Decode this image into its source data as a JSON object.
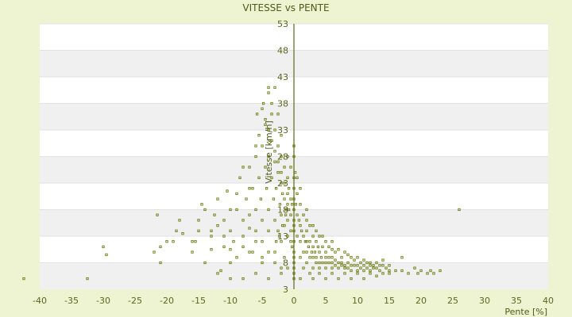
{
  "chart_data": {
    "type": "scatter",
    "title": "VITESSE vs PENTE",
    "xlabel": "Pente [%]",
    "ylabel": "Vitesse [km/h]",
    "xlim": [
      -40,
      40
    ],
    "ylim": [
      3,
      53
    ],
    "x_ticks": [
      "-40",
      "-35",
      "-30",
      "-25",
      "-20",
      "-15",
      "-10",
      "-5",
      "0",
      "5",
      "10",
      "15",
      "20",
      "25",
      "30",
      "35",
      "40"
    ],
    "y_ticks": [
      "53",
      "48",
      "43",
      "38",
      "33",
      "28",
      "23",
      "18",
      "13",
      "8",
      "3"
    ],
    "grid": "horizontal bands",
    "colors": {
      "background": "#eef3d1",
      "band_light": "#ffffff",
      "band_dark": "#f0f0f0",
      "axis": "#5a6b10",
      "marker": "#6f7d12"
    },
    "series": [
      {
        "points": [
          [
            -42.5,
            5
          ],
          [
            -32.5,
            5
          ],
          [
            -30,
            11
          ],
          [
            -29.5,
            9.5
          ],
          [
            -21.5,
            17
          ],
          [
            -21,
            11
          ],
          [
            -21,
            8
          ],
          [
            -19,
            12
          ],
          [
            -18.5,
            14
          ],
          [
            -17.5,
            13.5
          ],
          [
            -16,
            10
          ],
          [
            -15.5,
            12
          ],
          [
            -15,
            16
          ],
          [
            -14.5,
            19
          ],
          [
            -14,
            8
          ],
          [
            -13,
            10.5
          ],
          [
            -13,
            13
          ],
          [
            -12.5,
            17
          ],
          [
            -12,
            15
          ],
          [
            -11.5,
            6.5
          ],
          [
            -11,
            13
          ],
          [
            -10.5,
            21.5
          ],
          [
            -10,
            10.5
          ],
          [
            -10,
            14
          ],
          [
            -9.5,
            12
          ],
          [
            -9,
            18
          ],
          [
            -8.5,
            24
          ],
          [
            -8,
            16
          ],
          [
            -8,
            11
          ],
          [
            -7.5,
            20
          ],
          [
            -7,
            26
          ],
          [
            -7,
            14.5
          ],
          [
            -6.5,
            22
          ],
          [
            -6.5,
            10
          ],
          [
            -6,
            28
          ],
          [
            -6,
            18
          ],
          [
            -6,
            12
          ],
          [
            -5.8,
            36
          ],
          [
            -5.5,
            32
          ],
          [
            -5.5,
            24
          ],
          [
            -5.2,
            20
          ],
          [
            -5,
            30
          ],
          [
            -5,
            16
          ],
          [
            -5,
            8
          ],
          [
            -4.8,
            38
          ],
          [
            -4.5,
            34
          ],
          [
            -4.5,
            26
          ],
          [
            -4.3,
            22
          ],
          [
            -4,
            40
          ],
          [
            -4,
            28
          ],
          [
            -4,
            18
          ],
          [
            -4,
            14
          ],
          [
            -3.8,
            31
          ],
          [
            -3.5,
            36
          ],
          [
            -3.5,
            24
          ],
          [
            -3.2,
            20
          ],
          [
            -3,
            33
          ],
          [
            -3,
            27
          ],
          [
            -3,
            16
          ],
          [
            -3,
            10
          ],
          [
            -2.8,
            22
          ],
          [
            -2.5,
            30
          ],
          [
            -2.5,
            25
          ],
          [
            -2.5,
            14
          ],
          [
            -2.2,
            19
          ],
          [
            -2,
            28
          ],
          [
            -2,
            23
          ],
          [
            -2,
            17
          ],
          [
            -2,
            12
          ],
          [
            -1.8,
            21
          ],
          [
            -1.5,
            26
          ],
          [
            -1.5,
            20
          ],
          [
            -1.5,
            15
          ],
          [
            -1.2,
            18
          ],
          [
            -1,
            24
          ],
          [
            -1,
            19
          ],
          [
            -1,
            16
          ],
          [
            -1,
            13
          ],
          [
            -0.8,
            22
          ],
          [
            -0.5,
            20
          ],
          [
            -0.5,
            17
          ],
          [
            -0.5,
            14
          ],
          [
            -0.3,
            11
          ],
          [
            0,
            28
          ],
          [
            0,
            22
          ],
          [
            0,
            18
          ],
          [
            0,
            15
          ],
          [
            0,
            12
          ],
          [
            0,
            9
          ],
          [
            0,
            6
          ],
          [
            0,
            5
          ],
          [
            0.2,
            25
          ],
          [
            0.3,
            19
          ],
          [
            0.5,
            21
          ],
          [
            0.5,
            17
          ],
          [
            0.5,
            13
          ],
          [
            0.8,
            16
          ],
          [
            1,
            19
          ],
          [
            1,
            15
          ],
          [
            1,
            12
          ],
          [
            1,
            9
          ],
          [
            1.2,
            14
          ],
          [
            1.5,
            17
          ],
          [
            1.5,
            13
          ],
          [
            1.5,
            10
          ],
          [
            1.8,
            12
          ],
          [
            2,
            16
          ],
          [
            2,
            14
          ],
          [
            2,
            12
          ],
          [
            2,
            10
          ],
          [
            2,
            8
          ],
          [
            2.3,
            11
          ],
          [
            2.5,
            15
          ],
          [
            2.5,
            12
          ],
          [
            2.5,
            9
          ],
          [
            2.8,
            10
          ],
          [
            3,
            13
          ],
          [
            3,
            11
          ],
          [
            3,
            9
          ],
          [
            3,
            7
          ],
          [
            3.3,
            10
          ],
          [
            3.5,
            12
          ],
          [
            3.5,
            9
          ],
          [
            3.5,
            8
          ],
          [
            3.8,
            11
          ],
          [
            4,
            10
          ],
          [
            4,
            8
          ],
          [
            4,
            7
          ],
          [
            4.3,
            9
          ],
          [
            4.5,
            11
          ],
          [
            4.5,
            8
          ],
          [
            5,
            10
          ],
          [
            5,
            9
          ],
          [
            5,
            8
          ],
          [
            5,
            7
          ],
          [
            5.5,
            9
          ],
          [
            5.5,
            8
          ],
          [
            6,
            9
          ],
          [
            6,
            8
          ],
          [
            6,
            7
          ],
          [
            6.5,
            8.5
          ],
          [
            6.5,
            7.5
          ],
          [
            7,
            8
          ],
          [
            7,
            7
          ],
          [
            7.5,
            8
          ],
          [
            7.5,
            7.5
          ],
          [
            8,
            7.5
          ],
          [
            8,
            7
          ],
          [
            8.5,
            8
          ],
          [
            8.5,
            7
          ],
          [
            9,
            7.5
          ],
          [
            9,
            6.5
          ],
          [
            9.5,
            7.5
          ],
          [
            10,
            7.5
          ],
          [
            10,
            6.5
          ],
          [
            10.5,
            7
          ],
          [
            11,
            7.5
          ],
          [
            11,
            6.5
          ],
          [
            11.5,
            7
          ],
          [
            12,
            7.5
          ],
          [
            12,
            6.5
          ],
          [
            12.5,
            7
          ],
          [
            13,
            7
          ],
          [
            13.5,
            6.5
          ],
          [
            14,
            7.5
          ],
          [
            14.5,
            7
          ],
          [
            15,
            6.5
          ],
          [
            16,
            6.5
          ],
          [
            17,
            9
          ],
          [
            17,
            6.5
          ],
          [
            18,
            6
          ],
          [
            19,
            7
          ],
          [
            19.5,
            6
          ],
          [
            20,
            6.5
          ],
          [
            21,
            6
          ],
          [
            21.5,
            6.5
          ],
          [
            22,
            6
          ],
          [
            23,
            6.5
          ],
          [
            26,
            18
          ],
          [
            0,
            30
          ],
          [
            -0.5,
            26
          ],
          [
            -1,
            28
          ],
          [
            -2,
            32
          ],
          [
            -3.5,
            38
          ],
          [
            -4,
            41
          ],
          [
            -3,
            41
          ],
          [
            -2.5,
            36
          ],
          [
            -6,
            30
          ],
          [
            -7,
            22
          ],
          [
            -8,
            26
          ],
          [
            -9,
            21
          ],
          [
            -10,
            18
          ],
          [
            -11,
            16
          ],
          [
            -12,
            20
          ],
          [
            -13,
            14
          ],
          [
            -14,
            18
          ],
          [
            -15,
            14
          ],
          [
            -16,
            12
          ],
          [
            -18,
            16
          ],
          [
            -20,
            12
          ],
          [
            -22,
            10
          ],
          [
            -12,
            6
          ],
          [
            -10,
            5
          ],
          [
            -8,
            5
          ],
          [
            -6,
            6
          ],
          [
            -4,
            5
          ],
          [
            -2,
            6
          ],
          [
            -1,
            7
          ],
          [
            1,
            5
          ],
          [
            3,
            5
          ],
          [
            5,
            5
          ],
          [
            7,
            5
          ],
          [
            9,
            5
          ],
          [
            11,
            5
          ],
          [
            13,
            5.5
          ],
          [
            15,
            6
          ],
          [
            6,
            12
          ],
          [
            8,
            10
          ],
          [
            10,
            9
          ],
          [
            12,
            8
          ],
          [
            14,
            8.5
          ],
          [
            7,
            10.5
          ],
          [
            9,
            9
          ],
          [
            11,
            8.5
          ],
          [
            13,
            8
          ],
          [
            15,
            7.5
          ],
          [
            4,
            13
          ],
          [
            5,
            12
          ],
          [
            6,
            10.5
          ],
          [
            3,
            15
          ],
          [
            2,
            18
          ],
          [
            1,
            22
          ],
          [
            0.5,
            24
          ],
          [
            -0.5,
            12
          ],
          [
            -1.5,
            9
          ],
          [
            -2,
            7
          ],
          [
            -3,
            8
          ],
          [
            -4,
            10
          ],
          [
            -5,
            12
          ],
          [
            -6,
            14
          ],
          [
            -7,
            17
          ],
          [
            -8,
            13
          ],
          [
            -9,
            9
          ],
          [
            -10,
            8
          ],
          [
            -11,
            11
          ],
          [
            -7,
            10
          ],
          [
            -5,
            9
          ],
          [
            0,
            10
          ],
          [
            0,
            8
          ],
          [
            0,
            7
          ],
          [
            0,
            14
          ],
          [
            0,
            16
          ],
          [
            0,
            20
          ],
          [
            0,
            24
          ],
          [
            1.5,
            7
          ],
          [
            2.5,
            6
          ],
          [
            4,
            6
          ],
          [
            6,
            6
          ],
          [
            8,
            6
          ],
          [
            10,
            6
          ],
          [
            12,
            6
          ],
          [
            14,
            6
          ],
          [
            3.5,
            14
          ],
          [
            4.5,
            13
          ],
          [
            5.5,
            11
          ],
          [
            6.5,
            10
          ],
          [
            7.5,
            9
          ],
          [
            8.5,
            9.5
          ],
          [
            9.5,
            8.5
          ],
          [
            10.5,
            8
          ],
          [
            11.5,
            8
          ],
          [
            12.5,
            7.5
          ],
          [
            13.5,
            7.5
          ],
          [
            -1,
            21
          ],
          [
            -1.5,
            23
          ],
          [
            -2,
            25
          ],
          [
            -2.5,
            27
          ],
          [
            -3,
            29
          ],
          [
            -3.5,
            31
          ],
          [
            -4,
            33
          ],
          [
            -4.5,
            35
          ],
          [
            -5,
            37
          ],
          [
            -0.3,
            19
          ],
          [
            -0.8,
            18
          ],
          [
            -1.3,
            17
          ],
          [
            -1.8,
            15
          ],
          [
            -2.3,
            13
          ],
          [
            -2.8,
            12
          ]
        ]
      }
    ]
  }
}
